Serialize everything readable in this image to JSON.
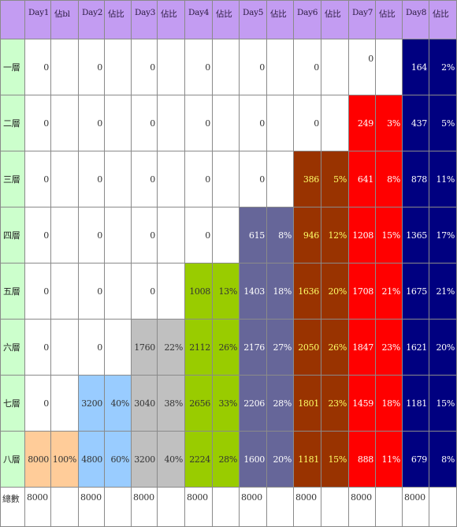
{
  "header": [
    "Day1",
    "佔bl",
    "Day2",
    "佔比",
    "Day3",
    "佔比",
    "Day4",
    "佔比",
    "Day5",
    "佔比",
    "Day6",
    "佔比",
    "Day7",
    "佔比",
    "Day8",
    "佔比"
  ],
  "rows": [
    {
      "label": "一層",
      "cells": [
        {
          "v": "0"
        },
        {
          "v": ""
        },
        {
          "v": "0"
        },
        {
          "v": ""
        },
        {
          "v": "0"
        },
        {
          "v": ""
        },
        {
          "v": "0"
        },
        {
          "v": ""
        },
        {
          "v": "0"
        },
        {
          "v": ""
        },
        {
          "v": "0"
        },
        {
          "v": ""
        },
        {
          "v": "0",
          "y": "top"
        },
        {
          "v": ""
        },
        {
          "v": "164",
          "bg": "#000080",
          "fg": "#ffffff"
        },
        {
          "v": "2%",
          "bg": "#000080",
          "fg": "#ffffff"
        }
      ]
    },
    {
      "label": "二層",
      "cells": [
        {
          "v": "0"
        },
        {
          "v": ""
        },
        {
          "v": "0"
        },
        {
          "v": ""
        },
        {
          "v": "0"
        },
        {
          "v": ""
        },
        {
          "v": "0"
        },
        {
          "v": ""
        },
        {
          "v": "0"
        },
        {
          "v": ""
        },
        {
          "v": "0"
        },
        {
          "v": ""
        },
        {
          "v": "249",
          "bg": "#ff0000",
          "fg": "#ffffff"
        },
        {
          "v": "3%",
          "bg": "#ff0000",
          "fg": "#ffffff"
        },
        {
          "v": "437",
          "bg": "#000080",
          "fg": "#ffffff"
        },
        {
          "v": "5%",
          "bg": "#000080",
          "fg": "#ffffff"
        }
      ]
    },
    {
      "label": "三層",
      "cells": [
        {
          "v": "0"
        },
        {
          "v": ""
        },
        {
          "v": "0"
        },
        {
          "v": ""
        },
        {
          "v": "0"
        },
        {
          "v": ""
        },
        {
          "v": "0"
        },
        {
          "v": ""
        },
        {
          "v": "0"
        },
        {
          "v": ""
        },
        {
          "v": "386",
          "bg": "#993300",
          "fg": "#ffff66"
        },
        {
          "v": "5%",
          "bg": "#993300",
          "fg": "#ffff66"
        },
        {
          "v": "641",
          "bg": "#ff0000",
          "fg": "#ffffff"
        },
        {
          "v": "8%",
          "bg": "#ff0000",
          "fg": "#ffffff"
        },
        {
          "v": "878",
          "bg": "#000080",
          "fg": "#ffffff"
        },
        {
          "v": "11%",
          "bg": "#000080",
          "fg": "#ffffff"
        }
      ]
    },
    {
      "label": "四層",
      "cells": [
        {
          "v": "0"
        },
        {
          "v": ""
        },
        {
          "v": "0"
        },
        {
          "v": ""
        },
        {
          "v": "0"
        },
        {
          "v": ""
        },
        {
          "v": "0"
        },
        {
          "v": ""
        },
        {
          "v": "615",
          "bg": "#666699",
          "fg": "#ffffff"
        },
        {
          "v": "8%",
          "bg": "#666699",
          "fg": "#ffffff"
        },
        {
          "v": "946",
          "bg": "#993300",
          "fg": "#ffff66"
        },
        {
          "v": "12%",
          "bg": "#993300",
          "fg": "#ffff66"
        },
        {
          "v": "1208",
          "bg": "#ff0000",
          "fg": "#ffffff"
        },
        {
          "v": "15%",
          "bg": "#ff0000",
          "fg": "#ffffff"
        },
        {
          "v": "1365",
          "bg": "#000080",
          "fg": "#ffffff"
        },
        {
          "v": "17%",
          "bg": "#000080",
          "fg": "#ffffff"
        }
      ]
    },
    {
      "label": "五層",
      "cells": [
        {
          "v": "0"
        },
        {
          "v": ""
        },
        {
          "v": "0"
        },
        {
          "v": ""
        },
        {
          "v": "0"
        },
        {
          "v": ""
        },
        {
          "v": "1008",
          "bg": "#99cc00",
          "fg": "#333333"
        },
        {
          "v": "13%",
          "bg": "#99cc00",
          "fg": "#333333"
        },
        {
          "v": "1403",
          "bg": "#666699",
          "fg": "#ffffff"
        },
        {
          "v": "18%",
          "bg": "#666699",
          "fg": "#ffffff"
        },
        {
          "v": "1636",
          "bg": "#993300",
          "fg": "#ffff66"
        },
        {
          "v": "20%",
          "bg": "#993300",
          "fg": "#ffff66"
        },
        {
          "v": "1708",
          "bg": "#ff0000",
          "fg": "#ffffff"
        },
        {
          "v": "21%",
          "bg": "#ff0000",
          "fg": "#ffffff"
        },
        {
          "v": "1675",
          "bg": "#000080",
          "fg": "#ffffff"
        },
        {
          "v": "21%",
          "bg": "#000080",
          "fg": "#ffffff"
        }
      ]
    },
    {
      "label": "六層",
      "cells": [
        {
          "v": "0"
        },
        {
          "v": ""
        },
        {
          "v": "0"
        },
        {
          "v": ""
        },
        {
          "v": "1760",
          "bg": "#c0c0c0",
          "fg": "#333333"
        },
        {
          "v": "22%",
          "bg": "#c0c0c0",
          "fg": "#333333"
        },
        {
          "v": "2112",
          "bg": "#99cc00",
          "fg": "#333333"
        },
        {
          "v": "26%",
          "bg": "#99cc00",
          "fg": "#333333"
        },
        {
          "v": "2176",
          "bg": "#666699",
          "fg": "#ffffff"
        },
        {
          "v": "27%",
          "bg": "#666699",
          "fg": "#ffffff"
        },
        {
          "v": "2050",
          "bg": "#993300",
          "fg": "#ffff66"
        },
        {
          "v": "26%",
          "bg": "#993300",
          "fg": "#ffff66"
        },
        {
          "v": "1847",
          "bg": "#ff0000",
          "fg": "#ffffff"
        },
        {
          "v": "23%",
          "bg": "#ff0000",
          "fg": "#ffffff"
        },
        {
          "v": "1621",
          "bg": "#000080",
          "fg": "#ffffff"
        },
        {
          "v": "20%",
          "bg": "#000080",
          "fg": "#ffffff"
        }
      ]
    },
    {
      "label": "七層",
      "cells": [
        {
          "v": "0"
        },
        {
          "v": ""
        },
        {
          "v": "3200",
          "bg": "#99ccff",
          "fg": "#333333"
        },
        {
          "v": "40%",
          "bg": "#99ccff",
          "fg": "#333333"
        },
        {
          "v": "3040",
          "bg": "#c0c0c0",
          "fg": "#333333"
        },
        {
          "v": "38%",
          "bg": "#c0c0c0",
          "fg": "#333333"
        },
        {
          "v": "2656",
          "bg": "#99cc00",
          "fg": "#333333"
        },
        {
          "v": "33%",
          "bg": "#99cc00",
          "fg": "#333333"
        },
        {
          "v": "2206",
          "bg": "#666699",
          "fg": "#ffffff"
        },
        {
          "v": "28%",
          "bg": "#666699",
          "fg": "#ffffff"
        },
        {
          "v": "1801",
          "bg": "#993300",
          "fg": "#ffff66"
        },
        {
          "v": "23%",
          "bg": "#993300",
          "fg": "#ffff66"
        },
        {
          "v": "1459",
          "bg": "#ff0000",
          "fg": "#ffffff"
        },
        {
          "v": "18%",
          "bg": "#ff0000",
          "fg": "#ffffff"
        },
        {
          "v": "1181",
          "bg": "#000080",
          "fg": "#ffffff"
        },
        {
          "v": "15%",
          "bg": "#000080",
          "fg": "#ffffff"
        }
      ]
    },
    {
      "label": "八層",
      "cells": [
        {
          "v": "8000",
          "bg": "#ffcc99",
          "fg": "#333333"
        },
        {
          "v": "100%",
          "bg": "#ffcc99",
          "fg": "#333333"
        },
        {
          "v": "4800",
          "bg": "#99ccff",
          "fg": "#333333"
        },
        {
          "v": "60%",
          "bg": "#99ccff",
          "fg": "#333333"
        },
        {
          "v": "3200",
          "bg": "#c0c0c0",
          "fg": "#333333"
        },
        {
          "v": "40%",
          "bg": "#c0c0c0",
          "fg": "#333333"
        },
        {
          "v": "2224",
          "bg": "#99cc00",
          "fg": "#333333"
        },
        {
          "v": "28%",
          "bg": "#99cc00",
          "fg": "#333333"
        },
        {
          "v": "1600",
          "bg": "#666699",
          "fg": "#ffffff"
        },
        {
          "v": "20%",
          "bg": "#666699",
          "fg": "#ffffff"
        },
        {
          "v": "1181",
          "bg": "#993300",
          "fg": "#ffff66"
        },
        {
          "v": "15%",
          "bg": "#993300",
          "fg": "#ffff66"
        },
        {
          "v": "888",
          "bg": "#ff0000",
          "fg": "#ffffff"
        },
        {
          "v": "11%",
          "bg": "#ff0000",
          "fg": "#ffffff"
        },
        {
          "v": "679",
          "bg": "#000080",
          "fg": "#ffffff"
        },
        {
          "v": "8%",
          "bg": "#000080",
          "fg": "#ffffff"
        }
      ]
    }
  ],
  "footer": {
    "label": "總數",
    "cells": [
      "8000",
      "",
      "8000",
      "",
      "8000",
      "",
      "8000",
      "",
      "8000",
      "",
      "8000",
      "",
      "8000",
      "",
      "8000",
      ""
    ]
  }
}
